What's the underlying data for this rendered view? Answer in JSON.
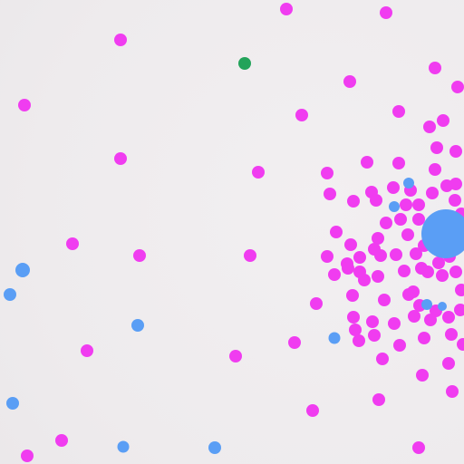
{
  "colors": {
    "background": "#efecee",
    "food": "#f03cf0",
    "blue_cell": "#5a9ef5",
    "green_cell": "#23a35a"
  },
  "icons": {
    "food": "circle",
    "cell": "circle"
  }
}
